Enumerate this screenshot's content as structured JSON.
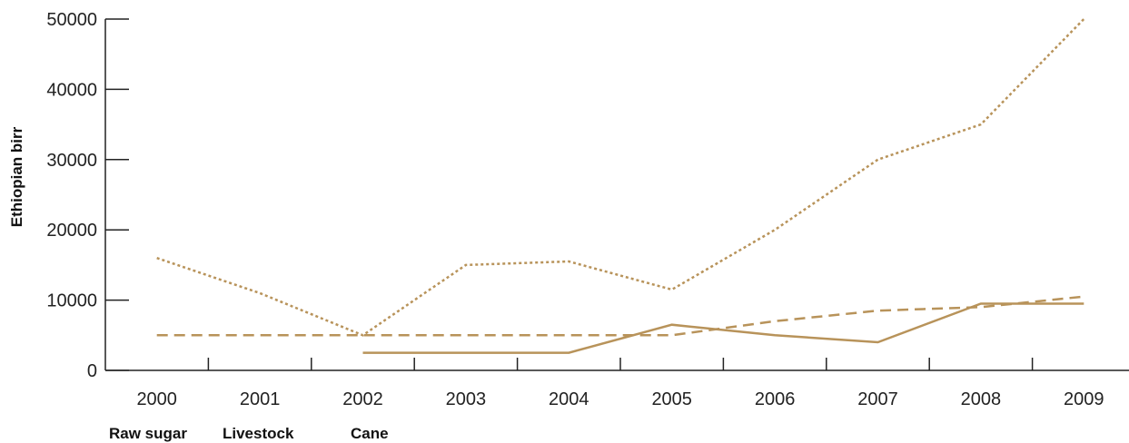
{
  "chart_data": {
    "type": "line",
    "title": "",
    "xlabel": "",
    "ylabel": "Ethiopian birr",
    "x": [
      "2000",
      "2001",
      "2002",
      "2003",
      "2004",
      "2005",
      "2006",
      "2007",
      "2008",
      "2009"
    ],
    "ylim": [
      0,
      50000
    ],
    "yticks": [
      0,
      10000,
      20000,
      30000,
      40000,
      50000
    ],
    "grid": false,
    "legend_position": "bottom-left",
    "color": "#b8935a",
    "series": [
      {
        "name": "Raw sugar",
        "style": "dotted",
        "values": [
          16000,
          11000,
          5000,
          15000,
          15500,
          11500,
          20000,
          30000,
          35000,
          50000
        ]
      },
      {
        "name": "Livestock",
        "style": "dashed",
        "values": [
          5000,
          5000,
          5000,
          5000,
          5000,
          5000,
          7000,
          8500,
          9000,
          10500
        ]
      },
      {
        "name": "Cane",
        "style": "solid",
        "values": [
          null,
          null,
          2500,
          2500,
          2500,
          6500,
          5000,
          4000,
          9500,
          9500
        ]
      }
    ]
  }
}
